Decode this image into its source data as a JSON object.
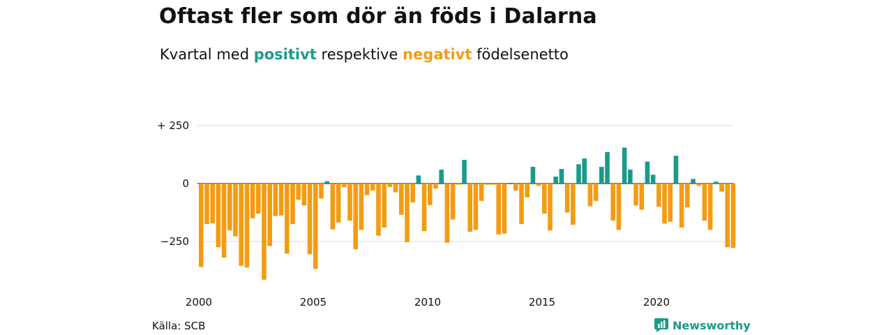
{
  "title": "Oftast fler som dör än föds i Dalarna",
  "subtitle": {
    "prefix": "Kvartal med",
    "positive": "positivt",
    "middle": "respektive",
    "negative": "negativt",
    "suffix": "födelsenetto"
  },
  "source": "Källa: SCB",
  "brand": "Newsworthy",
  "colors": {
    "positive": "#1b9a8a",
    "negative": "#f39c12",
    "grid": "#dddddd",
    "zero": "#333333"
  },
  "chart_data": {
    "type": "bar",
    "ylim": [
      -430,
      250
    ],
    "yticks": [
      {
        "value": 250,
        "label": "+ 250"
      },
      {
        "value": 0,
        "label": "0"
      },
      {
        "value": -250,
        "label": "−250"
      }
    ],
    "xticks": [
      "2000",
      "2005",
      "2010",
      "2015",
      "2020"
    ],
    "start_year": 2000,
    "values": [
      -360,
      -175,
      -172,
      -275,
      -320,
      -202,
      -228,
      -355,
      -362,
      -150,
      -130,
      -415,
      -270,
      -140,
      -138,
      -302,
      -175,
      -70,
      -95,
      -305,
      -368,
      -65,
      10,
      -198,
      -168,
      -15,
      -160,
      -283,
      -200,
      -50,
      -30,
      -225,
      -190,
      -15,
      -38,
      -135,
      -253,
      -82,
      35,
      -205,
      -93,
      -22,
      60,
      -255,
      -155,
      -5,
      102,
      -208,
      -200,
      -75,
      -5,
      -5,
      -220,
      -216,
      3,
      -30,
      -175,
      -60,
      72,
      -10,
      -130,
      -203,
      30,
      63,
      -125,
      -178,
      83,
      108,
      -98,
      -75,
      72,
      136,
      -160,
      -200,
      155,
      60,
      -95,
      -113,
      95,
      38,
      -100,
      -173,
      -165,
      120,
      -190,
      -103,
      20,
      -10,
      -160,
      -200,
      8,
      -35,
      -275,
      -278
    ]
  }
}
